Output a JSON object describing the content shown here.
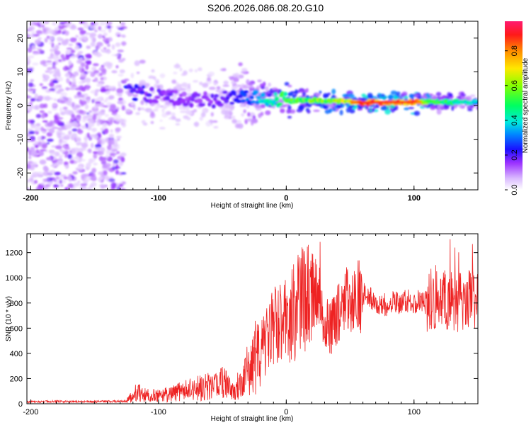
{
  "title": "S206.2026.086.08.20.G10",
  "colors": {
    "snr_line": "#ee2222",
    "frame": "#000000"
  },
  "chart_data": [
    {
      "type": "heatmap",
      "xlabel": "Height of straight line (km)",
      "ylabel": "Frequency (Hz)",
      "xlim": [
        -203,
        150
      ],
      "ylim": [
        -25,
        25
      ],
      "x_ticks": [
        -200,
        -100,
        0,
        100
      ],
      "x_tick_labels": [
        "-200",
        "-100",
        "0",
        "100"
      ],
      "y_ticks": [
        -20,
        -10,
        0,
        10,
        20
      ],
      "y_tick_labels": [
        "-20",
        "-10",
        "0",
        "10",
        "20"
      ],
      "colorbar": {
        "label": "Normalized spectral amplitude",
        "range": [
          0,
          0.97
        ],
        "ticks": [
          0.0,
          0.2,
          0.4,
          0.6,
          0.8
        ],
        "tick_labels": [
          "0.0",
          "0.2",
          "0.4",
          "0.6",
          "0.8"
        ],
        "colormap": "rainbow"
      },
      "noise_region_x": [
        -203,
        -127
      ],
      "signal_track": [
        {
          "x": -125,
          "freq": 4.0,
          "amp": 0.25
        },
        {
          "x": -110,
          "freq": 3.5,
          "amp": 0.2
        },
        {
          "x": -95,
          "freq": 2.5,
          "amp": 0.18
        },
        {
          "x": -80,
          "freq": 2.0,
          "amp": 0.16
        },
        {
          "x": -60,
          "freq": 1.5,
          "amp": 0.18
        },
        {
          "x": -40,
          "freq": 2.5,
          "amp": 0.22
        },
        {
          "x": -20,
          "freq": 2.0,
          "amp": 0.4
        },
        {
          "x": 0,
          "freq": 1.5,
          "amp": 0.55
        },
        {
          "x": 20,
          "freq": 1.5,
          "amp": 0.62
        },
        {
          "x": 40,
          "freq": 1.2,
          "amp": 0.66
        },
        {
          "x": 60,
          "freq": 0.9,
          "amp": 0.9
        },
        {
          "x": 80,
          "freq": 1.0,
          "amp": 0.9
        },
        {
          "x": 100,
          "freq": 1.0,
          "amp": 0.88
        },
        {
          "x": 120,
          "freq": 1.0,
          "amp": 0.55
        },
        {
          "x": 140,
          "freq": 1.0,
          "amp": 0.45
        },
        {
          "x": 150,
          "freq": 1.0,
          "amp": 0.4
        }
      ]
    },
    {
      "type": "line",
      "xlabel": "Height of straight line (km)",
      "ylabel": "SNR (10 * v/v)",
      "xlim": [
        -203,
        150
      ],
      "ylim": [
        0,
        1350
      ],
      "x_ticks": [
        -200,
        -100,
        0,
        100
      ],
      "x_tick_labels": [
        "-200",
        "-100",
        "0",
        "100"
      ],
      "y_ticks": [
        0,
        200,
        400,
        600,
        800,
        1000,
        1200
      ],
      "y_tick_labels": [
        "0",
        "200",
        "400",
        "600",
        "800",
        "1000",
        "1200"
      ],
      "series": [
        {
          "name": "SNR",
          "x": [
            -203,
            -180,
            -160,
            -140,
            -125,
            -118,
            -110,
            -100,
            -90,
            -80,
            -70,
            -60,
            -50,
            -40,
            -30,
            -25,
            -20,
            -15,
            -10,
            -5,
            0,
            5,
            10,
            14,
            18,
            22,
            26,
            30,
            35,
            40,
            45,
            50,
            55,
            60,
            65,
            70,
            75,
            80,
            85,
            90,
            95,
            100,
            105,
            110,
            115,
            120,
            125,
            130,
            135,
            140,
            145,
            150
          ],
          "values": [
            15,
            18,
            16,
            18,
            20,
            90,
            70,
            60,
            80,
            100,
            120,
            140,
            160,
            110,
            260,
            380,
            420,
            520,
            600,
            610,
            640,
            700,
            820,
            870,
            920,
            900,
            720,
            640,
            600,
            700,
            760,
            860,
            850,
            860,
            840,
            780,
            800,
            760,
            820,
            790,
            820,
            800,
            810,
            800,
            840,
            860,
            820,
            800,
            800,
            820,
            840,
            800
          ]
        }
      ]
    }
  ]
}
